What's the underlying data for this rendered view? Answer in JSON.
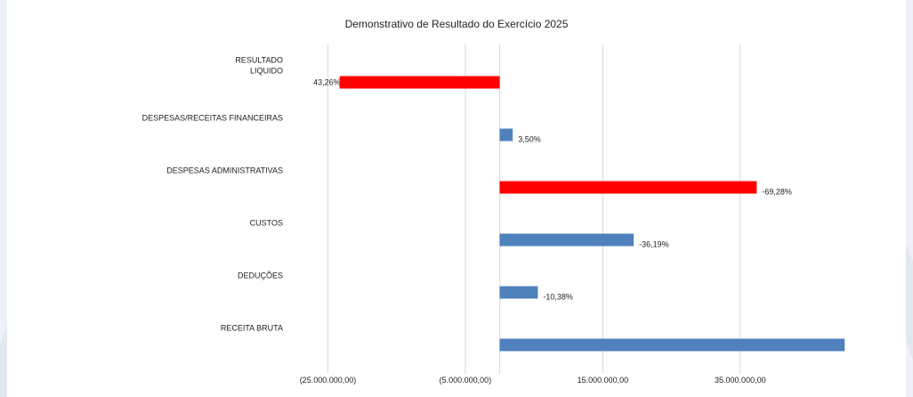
{
  "chart_data": {
    "type": "bar",
    "orientation": "horizontal",
    "title": "Demonstrativo de Resultado do Exercício 2025",
    "categories": [
      "RESULTADO LIQUIDO",
      "DESPESAS/RECEITAS FINANCEIRAS",
      "DESPESAS ADMINISTRATIVAS",
      "CUSTOS",
      "DEDUÇÕES",
      "RECEITA BRUTA"
    ],
    "category_lines": [
      [
        "RESULTADO",
        "LIQUIDO"
      ],
      [
        "DESPESAS/RECEITAS FINANCEIRAS"
      ],
      [
        "DESPESAS ADMINISTRATIVAS"
      ],
      [
        "CUSTOS"
      ],
      [
        "DEDUÇÕES"
      ],
      [
        "RECEITA BRUTA"
      ]
    ],
    "values": [
      -23300000,
      1900000,
      37400000,
      19500000,
      5550000,
      50200000
    ],
    "data_labels": [
      "43,26%",
      "3,50%",
      "-69,28%",
      "-36,19%",
      "-10,38%",
      ""
    ],
    "colors": [
      "#ff0000",
      "#4f81bd",
      "#ff0000",
      "#4f81bd",
      "#4f81bd",
      "#4f81bd"
    ],
    "x_ticks": [
      -25000000,
      -5000000,
      15000000,
      35000000
    ],
    "x_tick_labels": [
      "(25.000.000,00)",
      "(5.000.000,00)",
      "15.000.000,00",
      "35.000.000,00"
    ],
    "xlim": [
      -30500000,
      56000000
    ],
    "grid": true,
    "legend": "none"
  }
}
